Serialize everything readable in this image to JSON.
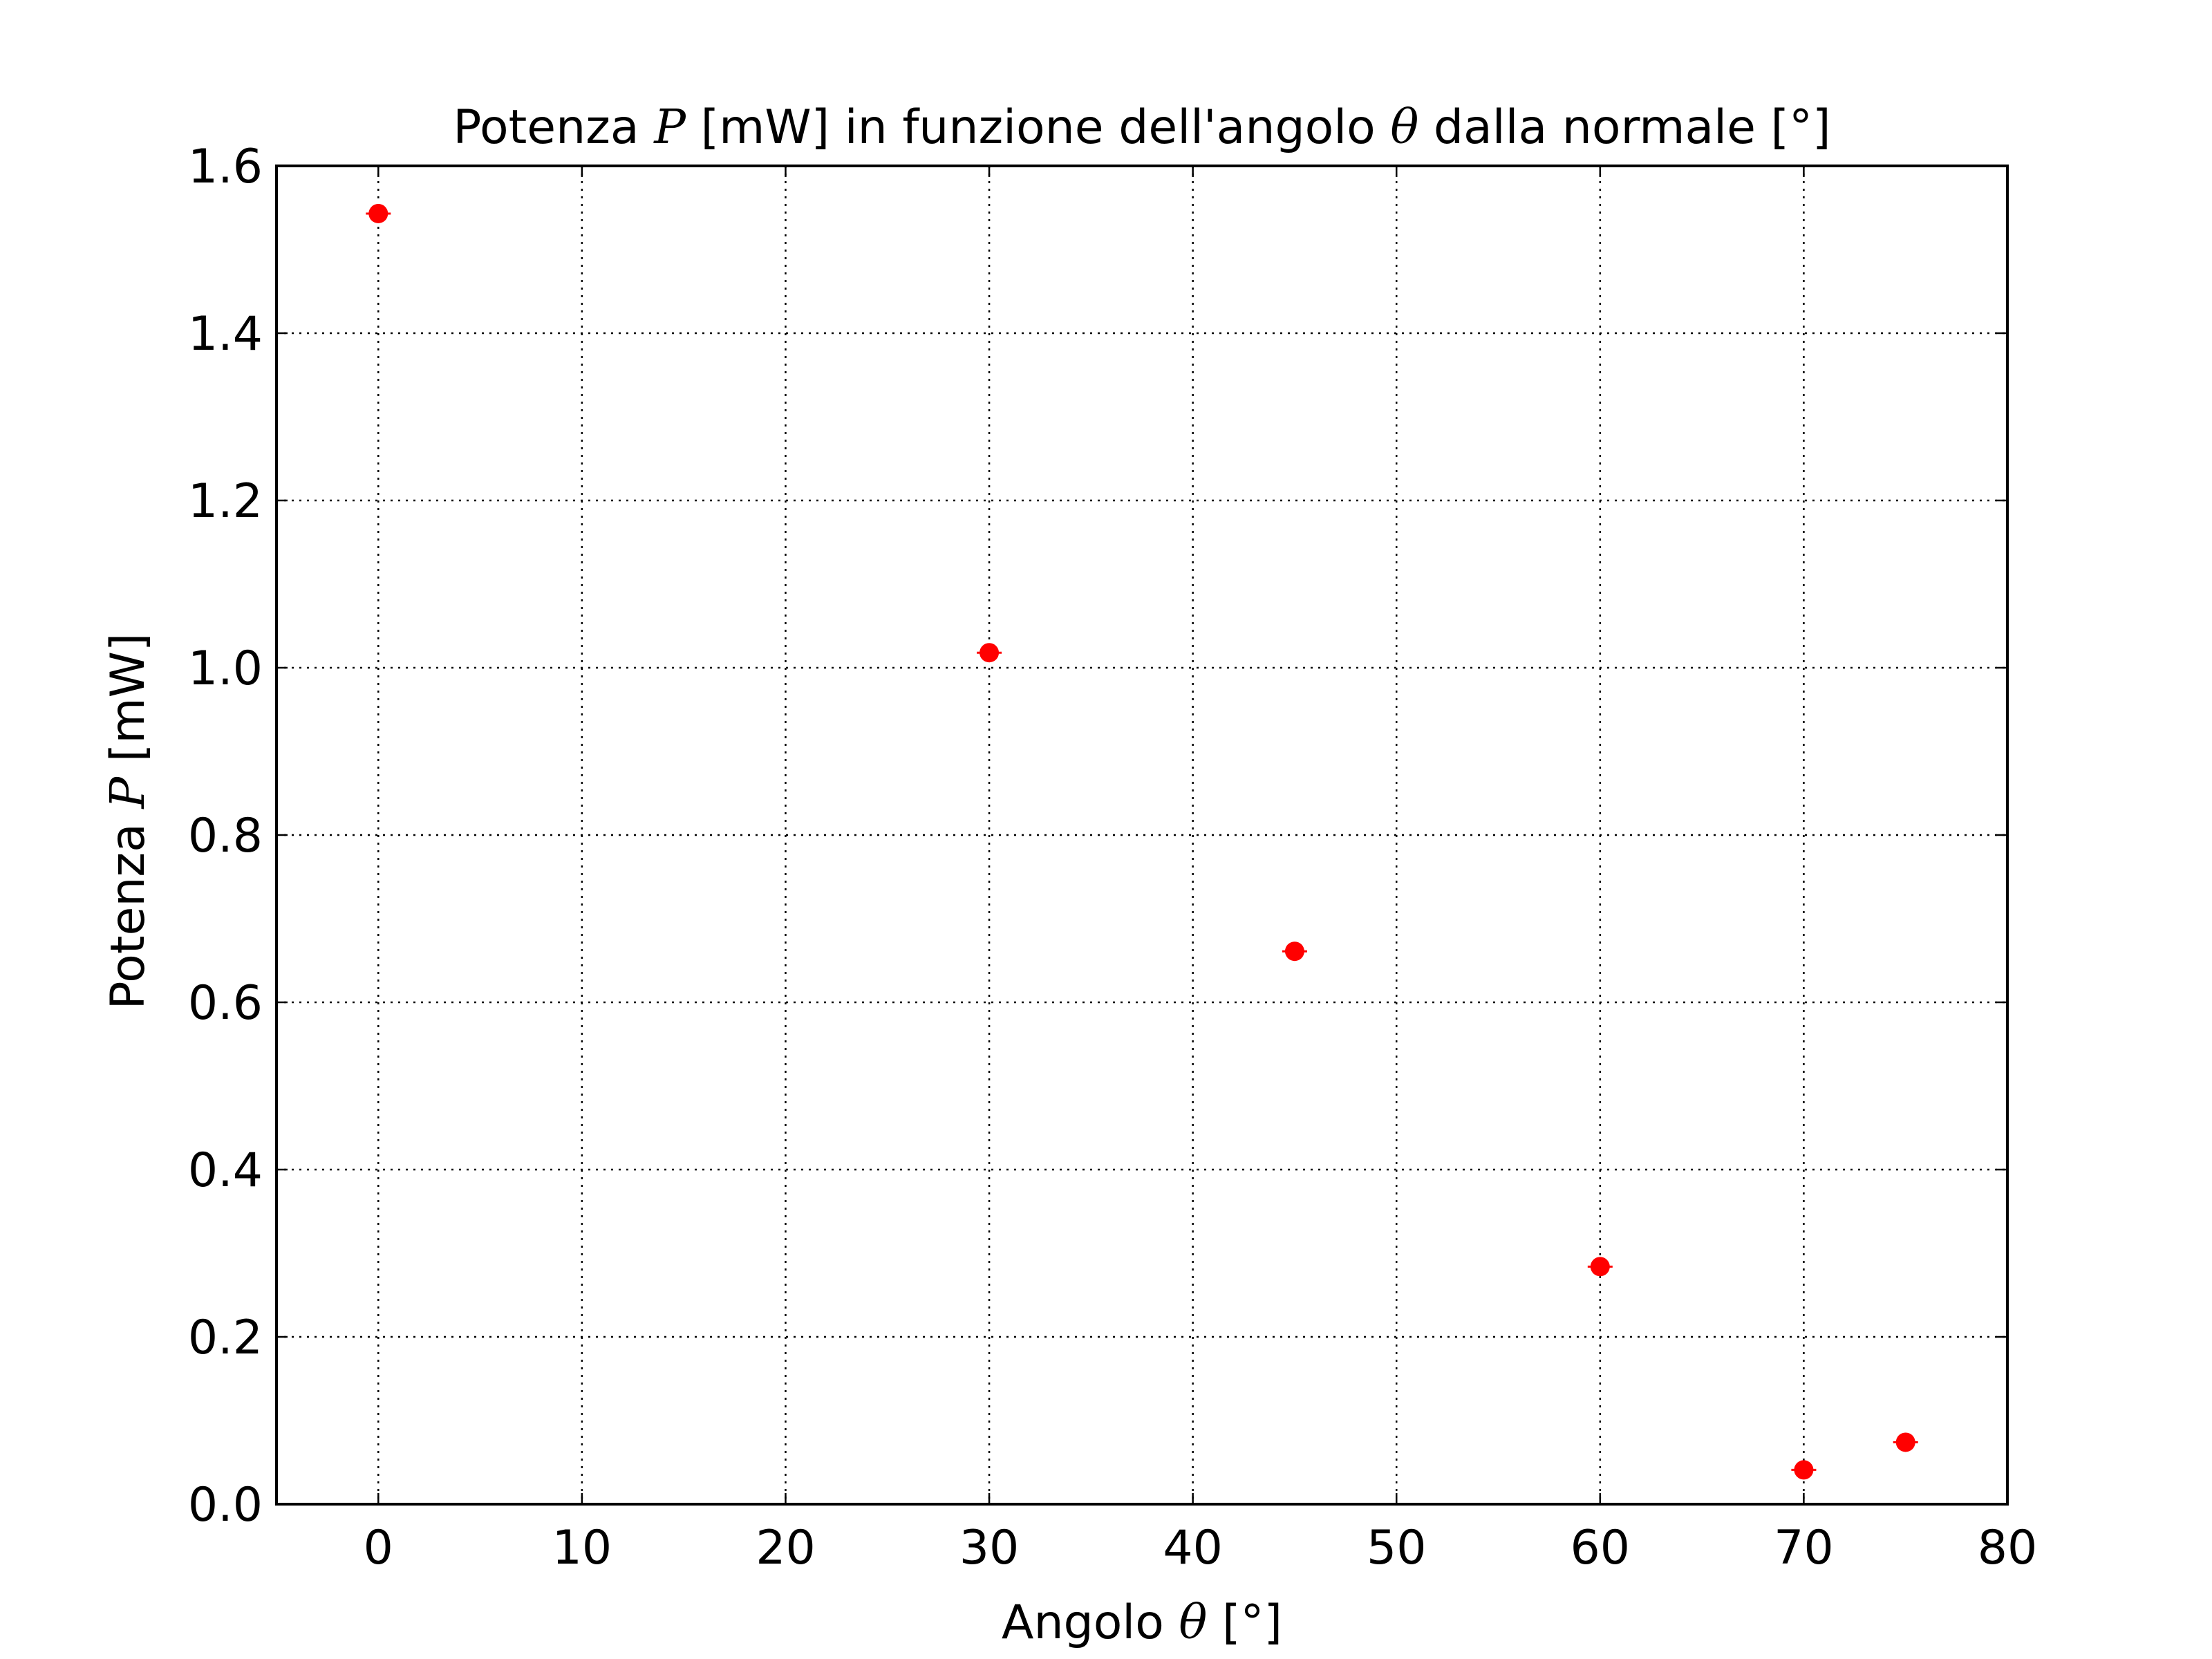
{
  "chart_data": {
    "type": "scatter",
    "title": {
      "prefix": "Potenza ",
      "symbol": "P",
      "middle": " [mW] in funzione dell'angolo ",
      "symbol2": "θ",
      "suffix": " dalla normale [°]"
    },
    "xlabel": {
      "prefix": "Angolo ",
      "symbol": "θ",
      "suffix": " [°]"
    },
    "ylabel": {
      "prefix": "Potenza ",
      "symbol": "P",
      "suffix": " [mW]"
    },
    "xlim": [
      -5,
      80
    ],
    "ylim": [
      0,
      1.6
    ],
    "xticks": [
      0,
      10,
      20,
      30,
      40,
      50,
      60,
      70,
      80
    ],
    "xtick_labels": [
      "0",
      "10",
      "20",
      "30",
      "40",
      "50",
      "60",
      "70",
      "80"
    ],
    "yticks": [
      0,
      0.2,
      0.4,
      0.6,
      0.8,
      1.0,
      1.2,
      1.4,
      1.6
    ],
    "ytick_labels": [
      "0.0",
      "0.2",
      "0.4",
      "0.6",
      "0.8",
      "1.0",
      "1.2",
      "1.4",
      "1.6"
    ],
    "grid": true,
    "marker_color": "#ff0000",
    "series": [
      {
        "x": [
          0,
          30,
          45,
          60,
          70,
          75
        ],
        "y": [
          1.543,
          1.018,
          0.661,
          0.284,
          0.041,
          0.074
        ]
      }
    ]
  }
}
